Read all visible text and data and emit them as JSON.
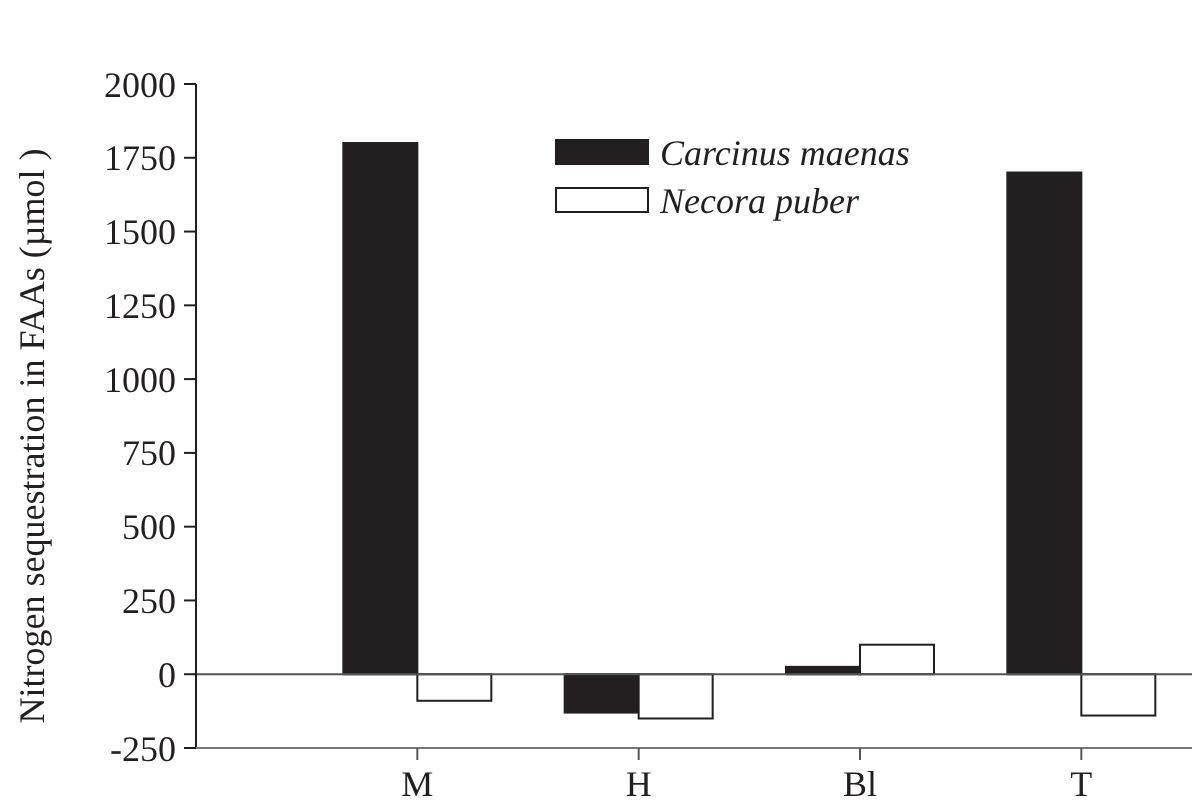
{
  "chart_data": {
    "type": "bar",
    "ylabel": "Nitrogen sequestration in FAAs (µmol )",
    "categories": [
      "M",
      "H",
      "Bl",
      "T"
    ],
    "series": [
      {
        "name": "Carcinus maenas",
        "color": "#231f20",
        "values": [
          1800,
          -130,
          25,
          1700
        ]
      },
      {
        "name": "Necora puber",
        "color": "#ffffff",
        "values": [
          -90,
          -150,
          100,
          -140
        ]
      }
    ],
    "ylim": [
      -250,
      2000
    ],
    "yticks": [
      -250,
      0,
      250,
      500,
      750,
      1000,
      1250,
      1500,
      1750,
      2000
    ],
    "ref_lines": [
      {
        "axis": "y",
        "value": 0
      }
    ],
    "legend": "top",
    "grid": false
  }
}
